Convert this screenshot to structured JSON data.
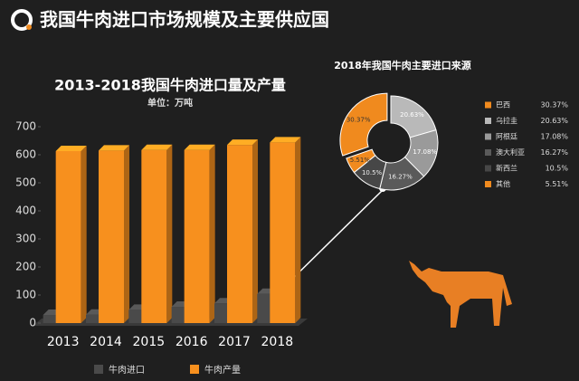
{
  "header": {
    "title": "我国牛肉进口市场规模及主要供应国"
  },
  "chart_data": [
    {
      "type": "bar3d",
      "title": "2013-2018我国牛肉进口量及产量",
      "subtitle": "单位：万吨",
      "categories": [
        "2013",
        "2014",
        "2015",
        "2016",
        "2017",
        "2018"
      ],
      "series": [
        {
          "name": "牛肉进口",
          "color": "#4a4a4a",
          "values": [
            29,
            30,
            47,
            58,
            70,
            104
          ]
        },
        {
          "name": "牛肉产量",
          "color": "#f7901e",
          "values": [
            613,
            615,
            617,
            617,
            635,
            644
          ]
        }
      ],
      "ylim": [
        0,
        700
      ],
      "yticks": [
        0,
        100,
        200,
        300,
        400,
        500,
        600,
        700
      ]
    },
    {
      "type": "donut",
      "title": "2018年我国牛肉主要进口来源",
      "categories": [
        "巴西",
        "乌拉圭",
        "阿根廷",
        "澳大利亚",
        "新西兰",
        "其他"
      ],
      "values": [
        30.37,
        20.63,
        17.08,
        16.27,
        10.5,
        5.51
      ],
      "value_labels": [
        "30.37%",
        "20.63%",
        "17.08%",
        "16.27%",
        "10.5%",
        "5.51%"
      ],
      "colors": [
        "#f08a1e",
        "#b9b9b9",
        "#9a9a9a",
        "#5a5a5a",
        "#474747",
        "#f08a1e"
      ]
    }
  ]
}
